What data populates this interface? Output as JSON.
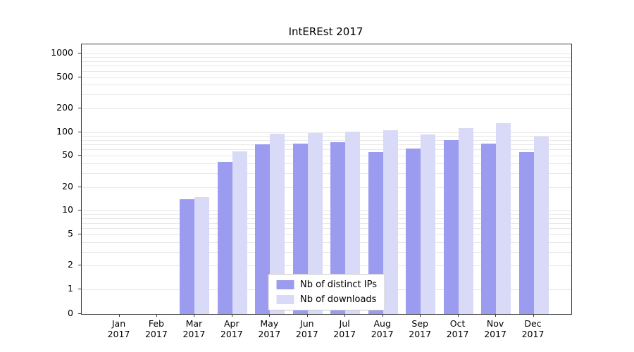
{
  "chart_data": {
    "type": "bar",
    "title": "IntEREst 2017",
    "categories": [
      "Jan 2017",
      "Feb 2017",
      "Mar 2017",
      "Apr 2017",
      "May 2017",
      "Jun 2017",
      "Jul 2017",
      "Aug 2017",
      "Sep 2017",
      "Oct 2017",
      "Nov 2017",
      "Dec 2017"
    ],
    "series": [
      {
        "name": "Nb of distinct IPs",
        "color": "#9b9bef",
        "values": [
          0,
          0,
          14,
          42,
          70,
          72,
          75,
          56,
          62,
          80,
          72,
          56
        ]
      },
      {
        "name": "Nb of downloads",
        "color": "#d9d9f8",
        "values": [
          0,
          0,
          15,
          57,
          95,
          98,
          101,
          105,
          93,
          112,
          131,
          88
        ]
      }
    ],
    "y_scale": "log",
    "y_ticks": [
      0,
      1,
      2,
      5,
      10,
      20,
      50,
      100,
      200,
      500,
      1000
    ],
    "ylim": [
      0,
      1400
    ],
    "xlabel": "",
    "ylabel": "",
    "grid": true,
    "legend_position": "lower center",
    "colors": {
      "grid": "#e8e8e8",
      "spine": "#3a3a3a",
      "background": "#ffffff"
    }
  }
}
